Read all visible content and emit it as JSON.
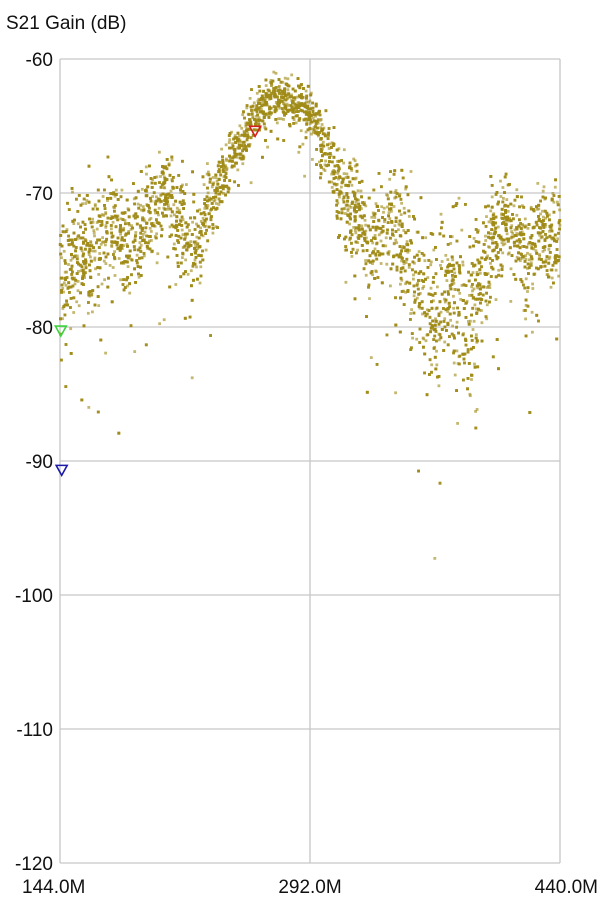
{
  "chart_data": {
    "type": "scatter",
    "title": "S21 Gain (dB)",
    "xlabel": "",
    "ylabel": "",
    "xlim": [
      144.0,
      440.0
    ],
    "ylim": [
      -120,
      -60
    ],
    "x_ticks": [
      144.0,
      292.0,
      440.0
    ],
    "x_tick_labels": [
      "144.0M",
      "292.0M",
      "440.0M"
    ],
    "y_ticks": [
      -60,
      -70,
      -80,
      -90,
      -100,
      -110,
      -120
    ],
    "y_tick_labels": [
      "-60",
      "-70",
      "-80",
      "-90",
      "-100",
      "-110",
      "-120"
    ],
    "grid": true,
    "x_unit": "MHz",
    "series": [
      {
        "color": "#a08a16",
        "envelope": {
          "x": [
            144,
            150,
            158,
            166,
            176,
            184,
            192,
            200,
            208,
            214,
            222,
            230,
            238,
            246,
            252,
            258,
            264,
            272,
            280,
            288,
            296,
            302,
            308,
            316,
            322,
            328,
            334,
            340,
            346,
            352,
            360,
            366,
            374,
            380,
            386,
            392,
            400,
            408,
            416,
            420,
            428,
            436,
            440
          ],
          "center": [
            -76,
            -75,
            -74,
            -74.5,
            -72,
            -74,
            -72,
            -71,
            -69.5,
            -72,
            -74.5,
            -72,
            -69,
            -67.5,
            -66,
            -64.5,
            -63.5,
            -63,
            -63,
            -63.5,
            -65,
            -66.5,
            -69,
            -71,
            -72,
            -74,
            -73,
            -72.5,
            -73.5,
            -76,
            -78,
            -79,
            -76,
            -78,
            -80,
            -77,
            -74,
            -71.5,
            -73,
            -75,
            -72.5,
            -73.5,
            -73
          ],
          "spread": [
            3.2,
            3,
            3,
            3,
            2.8,
            3,
            2.6,
            2.4,
            2.2,
            2.6,
            3,
            2.2,
            1.6,
            1.4,
            1.4,
            1.2,
            1.2,
            1.2,
            1.2,
            1.2,
            1.4,
            1.6,
            2,
            2.6,
            2.6,
            3,
            3.2,
            3.4,
            3.6,
            3.8,
            4,
            4.4,
            3.8,
            4.4,
            4.6,
            3.6,
            2.8,
            2,
            2.6,
            3.2,
            2.2,
            2.6,
            2.8
          ]
        }
      }
    ],
    "markers": [
      {
        "x": 144.5,
        "y": -80.3,
        "color": "#3cd43c"
      },
      {
        "x": 145.0,
        "y": -90.7,
        "color": "#1a1aa8"
      },
      {
        "x": 259.5,
        "y": -65.4,
        "color": "#d42020"
      }
    ]
  }
}
